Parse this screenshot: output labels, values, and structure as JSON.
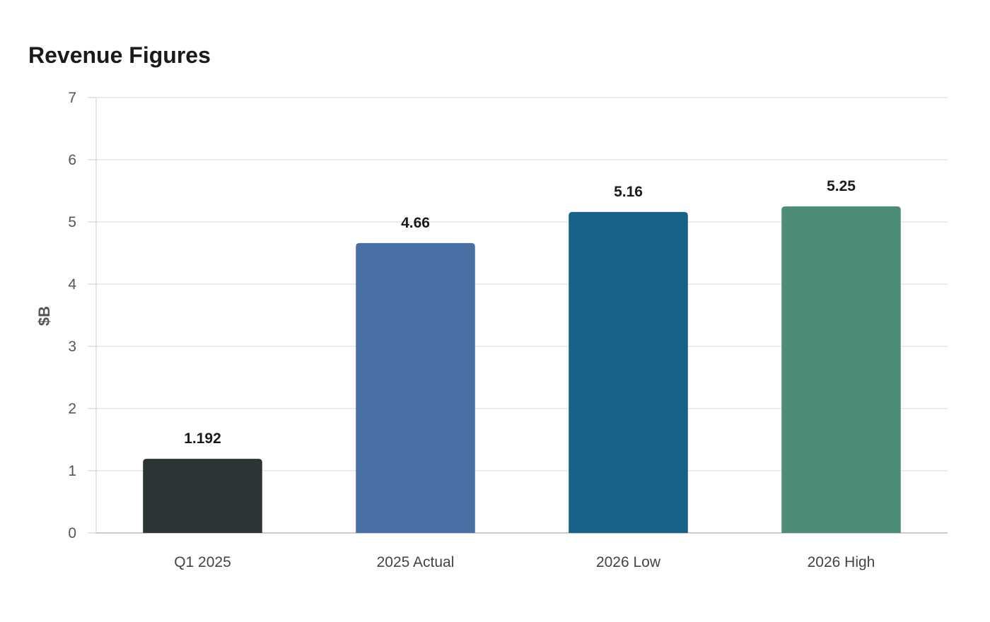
{
  "chart_data": {
    "type": "bar",
    "title": "Revenue Figures",
    "xlabel": "",
    "ylabel": "$B",
    "categories": [
      "Q1 2025",
      "2025 Actual",
      "2026 Low",
      "2026 High"
    ],
    "values": [
      1.192,
      4.66,
      5.16,
      5.25
    ],
    "value_labels": [
      "1.192",
      "4.66",
      "5.16",
      "5.25"
    ],
    "colors": [
      "#2d3436",
      "#4a6fa5",
      "#186287",
      "#4e8c7a"
    ],
    "ylim": [
      0,
      7
    ],
    "yticks": [
      0,
      1,
      2,
      3,
      4,
      5,
      6,
      7
    ],
    "grid": true,
    "legend": "none"
  }
}
